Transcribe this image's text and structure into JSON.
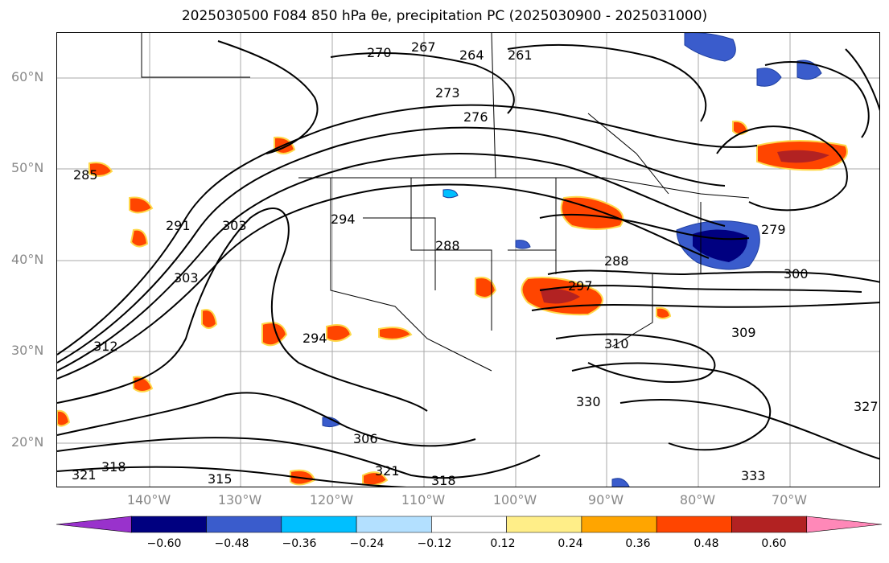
{
  "title": "2025030500 F084 850 hPa θe, precipitation PC (2025030900 - 2025031000)",
  "lat_labels": [
    "60°N",
    "50°N",
    "40°N",
    "30°N",
    "20°N"
  ],
  "lon_labels": [
    "140°W",
    "130°W",
    "120°W",
    "110°W",
    "100°W",
    "90°W",
    "80°W",
    "70°W"
  ],
  "contour_labels": [
    "261",
    "264",
    "267",
    "270",
    "273",
    "276",
    "279",
    "285",
    "288",
    "288",
    "291",
    "294",
    "294",
    "297",
    "300",
    "303",
    "303",
    "306",
    "309",
    "310",
    "312",
    "315",
    "318",
    "318",
    "321",
    "321",
    "327",
    "330",
    "333"
  ],
  "colorbar": {
    "ticks": [
      "−0.60",
      "−0.48",
      "−0.36",
      "−0.24",
      "−0.12",
      "0.12",
      "0.24",
      "0.36",
      "0.48",
      "0.60"
    ],
    "colors": [
      "#9932cc",
      "#000080",
      "#3a5ccc",
      "#00bfff",
      "#b3e0ff",
      "#ffffff",
      "#ffee88",
      "#ffa500",
      "#ff4500",
      "#b22222",
      "#ff88b8"
    ]
  }
}
